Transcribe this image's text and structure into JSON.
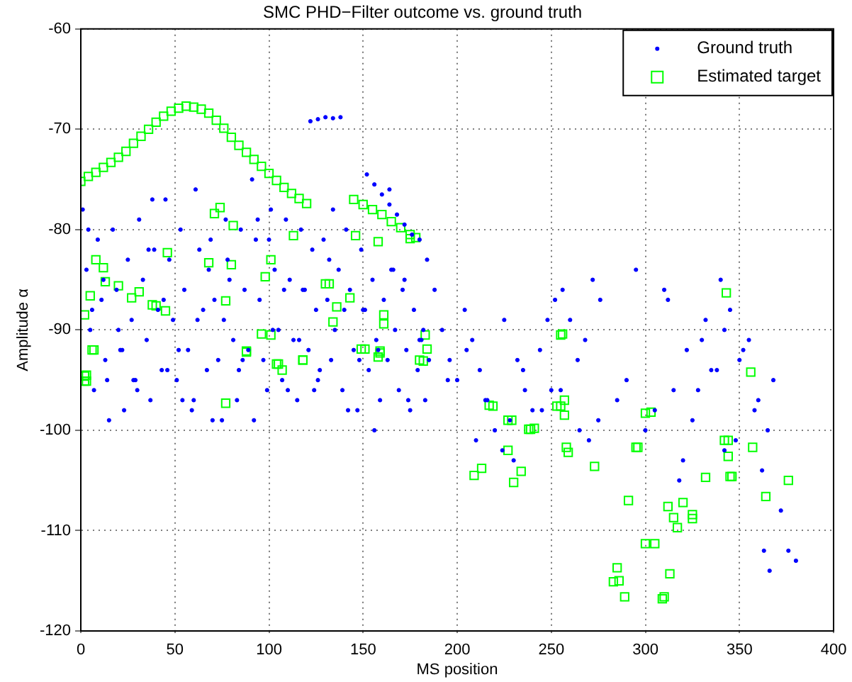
{
  "chart_data": {
    "type": "scatter",
    "title": "SMC PHD−Filter outcome vs. ground truth",
    "xlabel": "MS position",
    "ylabel": "Amplitude α",
    "xlim": [
      0,
      400
    ],
    "xticks": [
      0,
      50,
      100,
      150,
      200,
      250,
      300,
      350,
      400
    ],
    "ylim": [
      -120,
      -60
    ],
    "yticks": [
      -120,
      -110,
      -100,
      -90,
      -80,
      -70,
      -60
    ],
    "grid": true,
    "legend": "top right",
    "series": [
      {
        "name": "Ground truth",
        "color": "#0000ff",
        "marker": "circle",
        "x": [
          1,
          3,
          5,
          7,
          9,
          11,
          13,
          15,
          17,
          19,
          21,
          23,
          25,
          27,
          29,
          31,
          33,
          35,
          37,
          39,
          41,
          43,
          45,
          47,
          49,
          51,
          53,
          55,
          57,
          59,
          61,
          63,
          65,
          67,
          69,
          71,
          73,
          75,
          77,
          79,
          81,
          83,
          85,
          87,
          89,
          91,
          93,
          95,
          97,
          99,
          101,
          103,
          105,
          107,
          109,
          111,
          113,
          115,
          117,
          119,
          121,
          123,
          125,
          127,
          129,
          131,
          133,
          135,
          137,
          139,
          141,
          143,
          145,
          147,
          149,
          151,
          153,
          155,
          157,
          159,
          161,
          163,
          165,
          167,
          169,
          171,
          173,
          175,
          177,
          179,
          181,
          183,
          185,
          4,
          12,
          20,
          28,
          36,
          44,
          52,
          60,
          68,
          76,
          84,
          92,
          100,
          108,
          116,
          124,
          132,
          140,
          148,
          156,
          164,
          172,
          180,
          6,
          14,
          22,
          30,
          38,
          46,
          54,
          62,
          70,
          78,
          86,
          94,
          102,
          110,
          118,
          126,
          134,
          142,
          150,
          158,
          166,
          174,
          182,
          122,
          126,
          130,
          134,
          138,
          152,
          156,
          160,
          164,
          168,
          172,
          176,
          180,
          184,
          188,
          192,
          196,
          200,
          204,
          208,
          212,
          216,
          220,
          224,
          228,
          232,
          236,
          240,
          244,
          248,
          252,
          256,
          260,
          264,
          268,
          272,
          276,
          195,
          205,
          215,
          225,
          235,
          245,
          255,
          265,
          275,
          210,
          230,
          250,
          270,
          285,
          290,
          295,
          300,
          305,
          310,
          315,
          320,
          325,
          330,
          335,
          340,
          342,
          345,
          350,
          355,
          360,
          362,
          365,
          368,
          372,
          376,
          380,
          318,
          328,
          338,
          348,
          358,
          312,
          322,
          332,
          342,
          352,
          363,
          366
        ],
        "values": [
          -78,
          -84,
          -90,
          -96,
          -81,
          -87,
          -93,
          -99,
          -80,
          -86,
          -92,
          -98,
          -83,
          -89,
          -95,
          -79,
          -85,
          -91,
          -97,
          -82,
          -88,
          -94,
          -77,
          -83,
          -89,
          -95,
          -80,
          -86,
          -92,
          -98,
          -76,
          -82,
          -88,
          -94,
          -81,
          -87,
          -93,
          -99,
          -79,
          -85,
          -91,
          -97,
          -80,
          -86,
          -92,
          -75,
          -81,
          -87,
          -93,
          -96,
          -78,
          -84,
          -90,
          -95,
          -79,
          -85,
          -91,
          -97,
          -80,
          -86,
          -92,
          -82,
          -88,
          -94,
          -81,
          -87,
          -93,
          -90,
          -84,
          -96,
          -80,
          -86,
          -92,
          -98,
          -82,
          -88,
          -94,
          -85,
          -91,
          -97,
          -87,
          -93,
          -84,
          -90,
          -96,
          -86,
          -92,
          -98,
          -88,
          -94,
          -91,
          -97,
          -93,
          -80,
          -85,
          -90,
          -95,
          -82,
          -87,
          -92,
          -97,
          -84,
          -89,
          -94,
          -99,
          -81,
          -86,
          -91,
          -96,
          -83,
          -88,
          -93,
          -100,
          -76,
          -85,
          -91,
          -88,
          -95,
          -92,
          -96,
          -77,
          -94,
          -97,
          -89,
          -99,
          -83,
          -93,
          -79,
          -90,
          -96,
          -86,
          -95,
          -78,
          -98,
          -88,
          -92,
          -84,
          -97,
          -90,
          -69.2,
          -69.0,
          -68.8,
          -68.9,
          -68.8,
          -74.5,
          -75.5,
          -76.5,
          -77.5,
          -78.5,
          -79.5,
          -80.5,
          -81,
          -83,
          -86,
          -90,
          -93,
          -95,
          -88,
          -91,
          -94,
          -97,
          -100,
          -102,
          -99,
          -93,
          -96,
          -98,
          -92,
          -89,
          -87,
          -86,
          -89,
          -93,
          -91,
          -85,
          -87,
          -95,
          -92,
          -97,
          -89,
          -94,
          -98,
          -96,
          -100,
          -99,
          -101,
          -103,
          -96,
          -101,
          -97,
          -95,
          -84,
          -100,
          -98,
          -86,
          -96,
          -103,
          -99,
          -91,
          -94,
          -85,
          -102,
          -88,
          -93,
          -91,
          -97,
          -104,
          -100,
          -95,
          -108,
          -112,
          -113,
          -105,
          -96,
          -94,
          -101,
          -98,
          -87,
          -92,
          -89,
          -90,
          -92,
          -112,
          -114
        ]
      },
      {
        "name": "Estimated target",
        "color": "#00ff00",
        "marker": "square",
        "x": [
          0,
          4,
          8,
          12,
          16,
          20,
          24,
          28,
          32,
          36,
          40,
          44,
          48,
          52,
          56,
          60,
          64,
          68,
          72,
          76,
          80,
          84,
          88,
          92,
          96,
          100,
          104,
          108,
          112,
          116,
          120,
          145,
          150,
          155,
          160,
          165,
          170,
          175,
          178,
          71,
          74,
          81,
          113,
          46,
          68,
          80,
          101,
          98,
          130,
          8,
          12,
          5,
          13,
          20,
          27,
          31,
          38,
          40,
          45,
          77,
          2,
          96,
          101,
          6,
          88,
          105,
          118,
          2,
          2,
          77,
          146,
          158,
          175,
          132,
          143,
          136,
          134,
          161,
          161,
          183,
          151,
          159,
          182,
          219,
          229,
          241,
          255,
          7,
          3,
          3,
          88,
          104,
          107,
          118,
          149,
          158,
          159,
          180,
          184,
          217,
          227,
          227,
          238,
          239,
          209,
          213,
          230,
          234,
          253,
          255,
          257,
          257,
          258,
          259,
          273,
          291,
          295,
          296,
          300,
          303,
          300,
          305,
          285,
          283,
          286,
          289,
          309,
          310,
          313,
          312,
          315,
          317,
          320,
          325,
          325,
          332,
          342,
          344,
          344,
          345,
          346,
          356,
          357,
          364,
          376,
          343,
          256
        ],
        "values": [
          -75.2,
          -74.7,
          -74.3,
          -73.8,
          -73.3,
          -72.8,
          -72.2,
          -71.4,
          -70.7,
          -70.0,
          -69.3,
          -68.7,
          -68.2,
          -67.9,
          -67.7,
          -67.8,
          -68.0,
          -68.4,
          -69.1,
          -69.9,
          -70.8,
          -71.6,
          -72.3,
          -73.0,
          -73.7,
          -74.4,
          -75.1,
          -75.8,
          -76.4,
          -76.9,
          -77.4,
          -77.0,
          -77.5,
          -78.0,
          -78.5,
          -79.2,
          -79.8,
          -80.5,
          -80.8,
          -78.4,
          -77.8,
          -79.6,
          -80.6,
          -82.3,
          -83.3,
          -83.5,
          -83.0,
          -84.7,
          -85.4,
          -83.0,
          -83.8,
          -86.6,
          -85.2,
          -85.6,
          -86.8,
          -86.2,
          -87.5,
          -87.6,
          -88.1,
          -87.1,
          -88.5,
          -90.4,
          -90.5,
          -92.0,
          -92.2,
          -93.4,
          -93.0,
          -94.6,
          -95.1,
          -97.3,
          -80.6,
          -81.2,
          -80.9,
          -85.4,
          -86.8,
          -87.7,
          -89.2,
          -88.5,
          -89.4,
          -90.5,
          -91.9,
          -92.3,
          -93.1,
          -97.6,
          -99.0,
          -99.8,
          -90.5,
          -92.0,
          -94.5,
          -95.1,
          -92.1,
          -93.4,
          -94.0,
          -93.0,
          -91.9,
          -92.7,
          -92.1,
          -93.0,
          -91.9,
          -97.5,
          -99.0,
          -102.0,
          -99.9,
          -99.9,
          -104.5,
          -103.8,
          -105.2,
          -104.1,
          -97.6,
          -97.6,
          -97.0,
          -98.5,
          -101.7,
          -102.2,
          -103.6,
          -107.0,
          -101.7,
          -101.7,
          -98.3,
          -98.2,
          -111.3,
          -111.3,
          -113.7,
          -115.1,
          -115.0,
          -116.6,
          -116.8,
          -116.6,
          -114.3,
          -107.6,
          -108.7,
          -109.7,
          -107.2,
          -108.4,
          -108.8,
          -104.7,
          -101.0,
          -101.0,
          -102.6,
          -104.6,
          -104.6,
          -94.2,
          -101.7,
          -106.6,
          -105.0,
          -86.3,
          -90.4
        ]
      }
    ]
  }
}
